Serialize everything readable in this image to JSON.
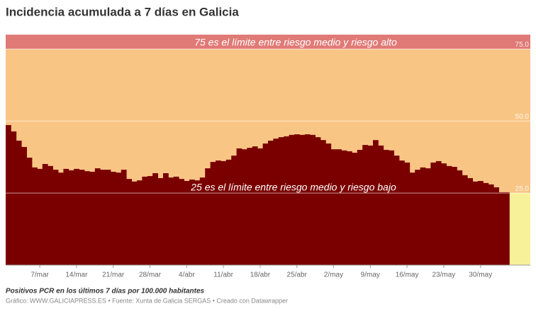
{
  "chart_data": {
    "type": "bar",
    "title": "Incidencia acumulada a 7 días en Galicia",
    "annotations": [
      "75 es el límite entre riesgo medio y riesgo alto",
      "25 es el límite entre riesgo medio y riesgo bajo"
    ],
    "caption": "Positivos PCR en los últimos 7 días por 100.000 habitantes",
    "source": "Gráfico: WWW.GALICIAPRESS.ES • Fuente: Xunta de Galicia SERGAS • Creado con Datawrapper",
    "categories": [
      null,
      null,
      null,
      null,
      null,
      null,
      "7/mar",
      null,
      null,
      null,
      null,
      null,
      null,
      "14/mar",
      null,
      null,
      null,
      null,
      null,
      null,
      "21/mar",
      null,
      null,
      null,
      null,
      null,
      null,
      "28/mar",
      null,
      null,
      null,
      null,
      null,
      null,
      "4/abr",
      null,
      null,
      null,
      null,
      null,
      null,
      "11/abr",
      null,
      null,
      null,
      null,
      null,
      null,
      "18/abr",
      null,
      null,
      null,
      null,
      null,
      null,
      "25/abr",
      null,
      null,
      null,
      null,
      null,
      null,
      "2/may",
      null,
      null,
      null,
      null,
      null,
      null,
      "9/may",
      null,
      null,
      null,
      null,
      null,
      null,
      "16/may",
      null,
      null,
      null,
      null,
      null,
      null,
      "23/may",
      null,
      null,
      null,
      null,
      null,
      null,
      "30/may",
      null,
      null,
      null,
      null,
      null
    ],
    "values": [
      48.6,
      46.4,
      43.2,
      41,
      37.3,
      33.9,
      33.4,
      35.1,
      34.4,
      33.1,
      32.1,
      33.4,
      32.9,
      33.4,
      33.1,
      32.6,
      32.4,
      33.6,
      33.1,
      33.1,
      32.4,
      32.1,
      33.1,
      29.9,
      29,
      29.4,
      30.7,
      30.9,
      31.9,
      30.2,
      31.9,
      30.4,
      30.7,
      29.9,
      29.2,
      29.7,
      29.4,
      30.4,
      33.6,
      35.8,
      36.3,
      36.1,
      36.6,
      38,
      40.5,
      40.2,
      40.7,
      41.2,
      40.5,
      42.2,
      43.2,
      43.9,
      44.4,
      44.7,
      45.2,
      45.4,
      45.2,
      45.4,
      45.2,
      44.4,
      43.4,
      42.2,
      40.2,
      40.2,
      39.8,
      39.5,
      39,
      40,
      41.7,
      41.5,
      43.4,
      41.5,
      40,
      39.8,
      38,
      36.3,
      35.6,
      32.1,
      33.1,
      33.9,
      33.6,
      35.6,
      36.1,
      35.3,
      34.4,
      34.1,
      32.9,
      31.2,
      30.2,
      29,
      29.2,
      28.5,
      28,
      27,
      25.3,
      25.3
    ],
    "color": "#7a0000",
    "bands": [
      {
        "from": 75,
        "to": 80,
        "color": "#e07a76"
      },
      {
        "from": 25,
        "to": 75,
        "color": "#f9c585"
      },
      {
        "from": 0,
        "to": 25,
        "color": "#f7f29a"
      }
    ],
    "ylim": [
      0,
      80
    ],
    "yticks": [
      {
        "value": 25,
        "label": "25.0"
      },
      {
        "value": 50,
        "label": "50.0"
      },
      {
        "value": 75,
        "label": "75.0"
      }
    ],
    "grid": true
  }
}
